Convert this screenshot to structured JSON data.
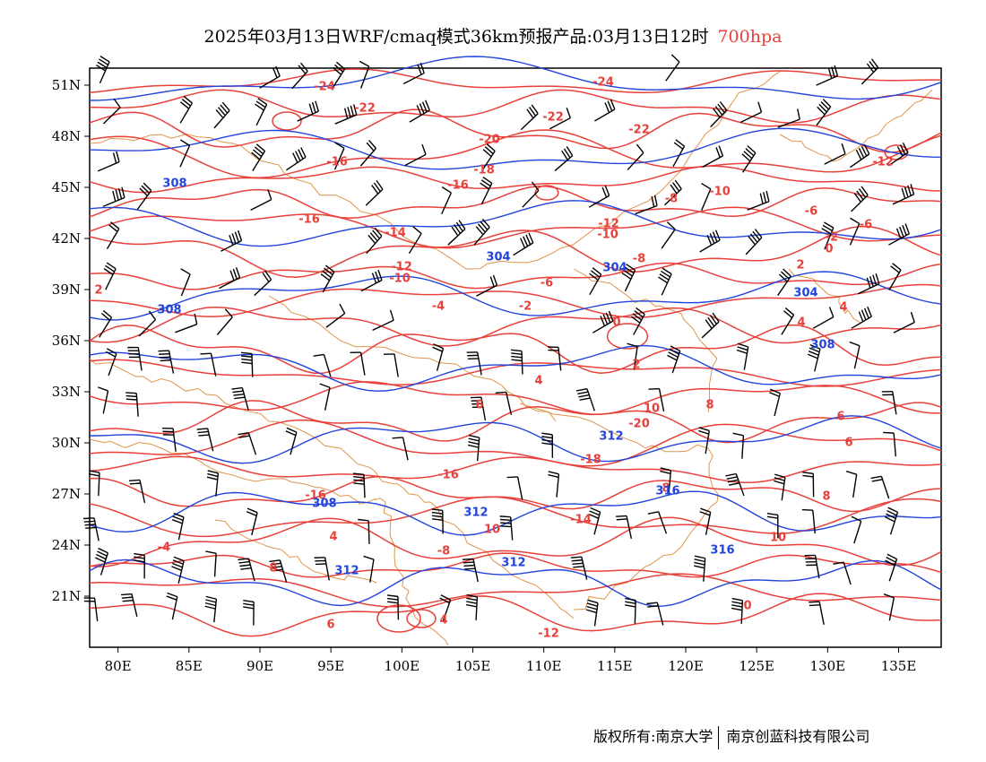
{
  "title": {
    "main": "2025年03月13日WRF/cmaq模式36km预报产品:03月13日12时",
    "level": "700hpa",
    "level_color": "#e8403a"
  },
  "map": {
    "lon_range": [
      78,
      138
    ],
    "lat_range": [
      18,
      52
    ],
    "x_ticks": [
      "80E",
      "85E",
      "90E",
      "95E",
      "100E",
      "105E",
      "110E",
      "115E",
      "120E",
      "125E",
      "130E",
      "135E"
    ],
    "y_ticks": [
      "51N",
      "48N",
      "45N",
      "42N",
      "39N",
      "36N",
      "33N",
      "30N",
      "27N",
      "24N",
      "21N"
    ],
    "temperature_color": "#e8403a",
    "height_color": "#2244dd",
    "border_color": "#e0954a",
    "wind_color": "#000000",
    "temperature_labels": [
      "-24",
      "-22",
      "-22",
      "-24",
      "-22",
      "-20",
      "-18",
      "-16",
      "-16",
      "-16",
      "-14",
      "-12",
      "-10",
      "-10",
      "-12",
      "-8",
      "-6",
      "-4",
      "-2",
      "0",
      "2",
      "4",
      "6",
      "8",
      "10",
      "-20",
      "-18",
      "-16",
      "-16",
      "-14",
      "-12",
      "-10",
      "-8",
      "-6",
      "-6",
      "-2",
      "0",
      "2",
      "4",
      "4",
      "6",
      "6",
      "8",
      "8",
      "10",
      "10",
      "-8",
      "4",
      "-4",
      "0",
      "2",
      "4",
      "8",
      "6",
      "-12"
    ],
    "height_labels": [
      "304",
      "304",
      "304",
      "308",
      "308",
      "308",
      "308",
      "312",
      "312",
      "312",
      "312",
      "316",
      "316"
    ]
  },
  "footer": {
    "left": "版权所有:南京大学",
    "right": "南京创蓝科技有限公司"
  }
}
